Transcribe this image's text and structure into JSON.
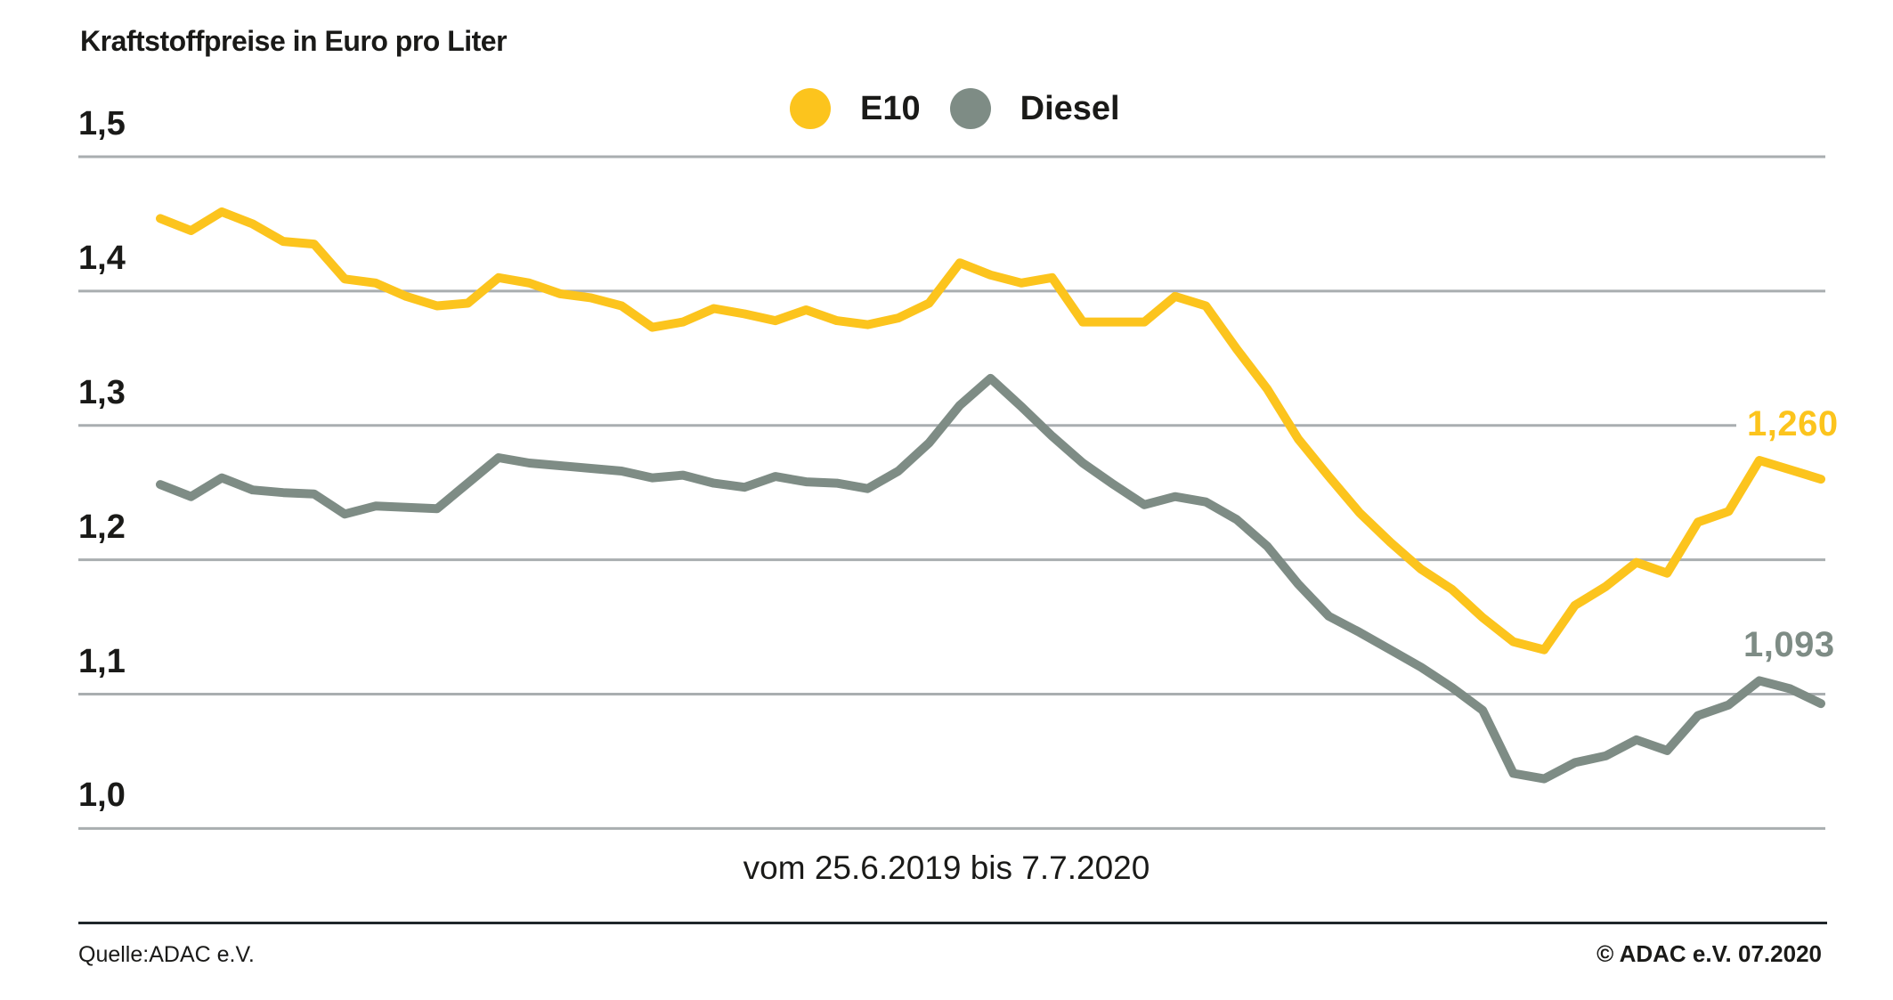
{
  "header": {
    "title": "Kraftstoffpreise in Euro pro Liter"
  },
  "chart_data": {
    "type": "line",
    "title": "Kraftstoffpreise in Euro pro Liter",
    "x_caption": "vom 25.6.2019 bis 7.7.2020",
    "x_range": [
      "25.6.2019",
      "7.7.2020"
    ],
    "x_unit": "weeks",
    "ylim": [
      1.0,
      1.5
    ],
    "y_ticks": [
      "1,5",
      "1,4",
      "1,3",
      "1,2",
      "1,1",
      "1,0"
    ],
    "grid": true,
    "legend_position": "top-center",
    "grid_color": "#A9AEB0",
    "series": [
      {
        "name": "E10",
        "color": "#FCC41D",
        "end_label": "1,260",
        "final_value": 1.26,
        "values": [
          1.454,
          1.445,
          1.459,
          1.45,
          1.437,
          1.435,
          1.409,
          1.406,
          1.396,
          1.389,
          1.391,
          1.41,
          1.406,
          1.398,
          1.395,
          1.389,
          1.373,
          1.377,
          1.387,
          1.383,
          1.378,
          1.386,
          1.378,
          1.375,
          1.38,
          1.391,
          1.421,
          1.412,
          1.406,
          1.41,
          1.377,
          1.377,
          1.377,
          1.396,
          1.389,
          1.357,
          1.327,
          1.29,
          1.262,
          1.235,
          1.213,
          1.193,
          1.178,
          1.157,
          1.139,
          1.133,
          1.166,
          1.18,
          1.198,
          1.19,
          1.228,
          1.236,
          1.274,
          1.267,
          1.26
        ]
      },
      {
        "name": "Diesel",
        "color": "#7E8C85",
        "end_label": "1,093",
        "final_value": 1.093,
        "values": [
          1.256,
          1.247,
          1.261,
          1.252,
          1.25,
          1.249,
          1.234,
          1.24,
          1.239,
          1.238,
          1.257,
          1.276,
          1.272,
          1.27,
          1.268,
          1.266,
          1.261,
          1.263,
          1.257,
          1.254,
          1.262,
          1.258,
          1.257,
          1.253,
          1.266,
          1.287,
          1.315,
          1.335,
          1.314,
          1.292,
          1.272,
          1.256,
          1.241,
          1.247,
          1.243,
          1.23,
          1.21,
          1.182,
          1.158,
          1.146,
          1.133,
          1.12,
          1.105,
          1.088,
          1.041,
          1.037,
          1.049,
          1.054,
          1.066,
          1.058,
          1.084,
          1.092,
          1.11,
          1.104,
          1.093
        ]
      }
    ]
  },
  "footer": {
    "source": "Quelle:ADAC e.V.",
    "copyright": "© ADAC e.V. 07.2020"
  }
}
